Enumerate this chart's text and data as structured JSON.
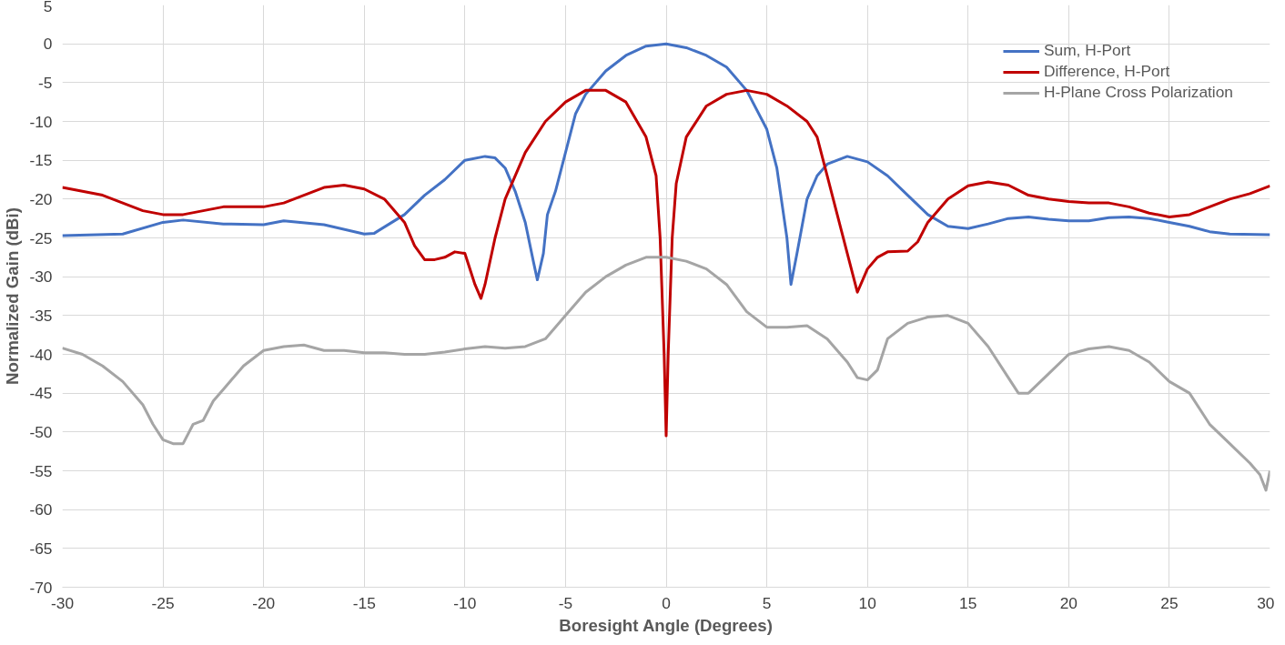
{
  "chart_data": {
    "type": "line",
    "xlabel": "Boresight Angle (Degrees)",
    "ylabel": "Normalized Gain (dBi)",
    "xlim": [
      -30,
      30
    ],
    "xticks": [
      -30,
      -25,
      -20,
      -15,
      -10,
      -5,
      0,
      5,
      10,
      15,
      20,
      25,
      30
    ],
    "ylim": [
      -70,
      5
    ],
    "yticks": [
      -70,
      -65,
      -60,
      -55,
      -50,
      -45,
      -40,
      -35,
      -30,
      -25,
      -20,
      -15,
      -10,
      -5,
      0,
      5
    ],
    "grid": true,
    "legend": "top right",
    "marker": "none",
    "line_style": "solid",
    "series": [
      {
        "name": "Sum, H-Port",
        "color": "#4472c4",
        "x": [
          -30,
          -27,
          -25,
          -24,
          -22,
          -20,
          -19,
          -17,
          -15,
          -14.5,
          -13,
          -12,
          -11,
          -10,
          -9,
          -8.5,
          -8,
          -7.5,
          -7,
          -6.6,
          -6.4,
          -6.1,
          -5.9,
          -5.5,
          -5,
          -4.5,
          -4,
          -3,
          -2,
          -1,
          0,
          1,
          2,
          3,
          4,
          5,
          5.5,
          6,
          6.2,
          6.5,
          7,
          7.5,
          8,
          9,
          10,
          11,
          12,
          13,
          14,
          15,
          16,
          17,
          18,
          19,
          20,
          21,
          22,
          23,
          24,
          25,
          26,
          27,
          28,
          30
        ],
        "values": [
          -24.7,
          -24.5,
          -23,
          -22.7,
          -23.2,
          -23.3,
          -22.8,
          -23.3,
          -24.5,
          -24.4,
          -22,
          -19.5,
          -17.5,
          -15,
          -14.5,
          -14.7,
          -16,
          -19,
          -23,
          -28,
          -30.4,
          -27,
          -22,
          -19,
          -14,
          -9,
          -6.5,
          -3.5,
          -1.5,
          -0.3,
          0,
          -0.5,
          -1.5,
          -3,
          -6,
          -11,
          -16,
          -25,
          -31,
          -27,
          -20,
          -17,
          -15.5,
          -14.5,
          -15.2,
          -17,
          -19.5,
          -22,
          -23.5,
          -23.8,
          -23.2,
          -22.5,
          -22.3,
          -22.6,
          -22.8,
          -22.8,
          -22.4,
          -22.3,
          -22.5,
          -23,
          -23.5,
          -24.2,
          -24.5,
          -24.6
        ]
      },
      {
        "name": "Difference, H-Port",
        "color": "#c00000",
        "x": [
          -30,
          -28,
          -26,
          -25,
          -24,
          -23,
          -22,
          -20,
          -19,
          -17,
          -16,
          -15,
          -14,
          -13,
          -12.5,
          -12,
          -11.5,
          -11,
          -10.5,
          -10,
          -9.5,
          -9.2,
          -9,
          -8.5,
          -8,
          -7,
          -6,
          -5,
          -4,
          -3,
          -2,
          -1,
          -0.5,
          -0.3,
          -0.1,
          0,
          0.1,
          0.3,
          0.5,
          1,
          2,
          3,
          4,
          5,
          6,
          7,
          7.5,
          8,
          8.5,
          9,
          9.5,
          10,
          10.5,
          11,
          12,
          12.5,
          13,
          14,
          15,
          16,
          17,
          18,
          19,
          20,
          21,
          22,
          23,
          24,
          25,
          26,
          27,
          28,
          29,
          30
        ],
        "values": [
          -18.5,
          -19.5,
          -21.5,
          -22,
          -22,
          -21.5,
          -21,
          -21,
          -20.5,
          -18.5,
          -18.2,
          -18.7,
          -20,
          -23,
          -26,
          -27.8,
          -27.8,
          -27.5,
          -26.8,
          -27,
          -31,
          -32.8,
          -31,
          -25,
          -20,
          -14,
          -10,
          -7.5,
          -6,
          -6,
          -7.5,
          -12,
          -17,
          -25,
          -40,
          -50.5,
          -40,
          -25,
          -18,
          -12,
          -8,
          -6.5,
          -6,
          -6.5,
          -8,
          -10,
          -12,
          -17,
          -22,
          -27,
          -32,
          -29,
          -27.5,
          -26.8,
          -26.7,
          -25.5,
          -23,
          -20,
          -18.3,
          -17.8,
          -18.2,
          -19.5,
          -20,
          -20.3,
          -20.5,
          -20.5,
          -21,
          -21.8,
          -22.3,
          -22,
          -21,
          -20,
          -19.3,
          -18.3
        ]
      },
      {
        "name": "H-Plane Cross Polarization",
        "color": "#a5a5a5",
        "x": [
          -30,
          -29,
          -28,
          -27,
          -26,
          -25.5,
          -25,
          -24.5,
          -24,
          -23.5,
          -23,
          -22.5,
          -22,
          -21,
          -20,
          -19,
          -18,
          -17,
          -16,
          -15,
          -14,
          -13,
          -12,
          -11,
          -10,
          -9,
          -8,
          -7,
          -6,
          -5,
          -4,
          -3,
          -2,
          -1,
          0,
          1,
          2,
          3,
          4,
          5,
          6,
          7,
          8,
          9,
          9.5,
          10,
          10.5,
          11,
          12,
          13,
          14,
          15,
          16,
          17,
          17.5,
          18,
          19,
          20,
          21,
          22,
          23,
          24,
          25,
          26,
          27,
          28,
          29,
          29.5,
          29.8,
          30
        ],
        "values": [
          -39.2,
          -40,
          -41.5,
          -43.5,
          -46.5,
          -49,
          -51,
          -51.5,
          -51.5,
          -49,
          -48.5,
          -46,
          -44.5,
          -41.5,
          -39.5,
          -39,
          -38.8,
          -39.5,
          -39.5,
          -39.8,
          -39.8,
          -40,
          -40,
          -39.7,
          -39.3,
          -39,
          -39.2,
          -39,
          -38,
          -35,
          -32,
          -30,
          -28.5,
          -27.5,
          -27.5,
          -28,
          -29,
          -31,
          -34.5,
          -36.5,
          -36.5,
          -36.3,
          -38,
          -41,
          -43,
          -43.3,
          -42,
          -38,
          -36,
          -35.2,
          -35,
          -36,
          -39,
          -43,
          -45,
          -45,
          -42.5,
          -40,
          -39.3,
          -39,
          -39.5,
          -41,
          -43.5,
          -45,
          -49,
          -51.5,
          -54,
          -55.5,
          -57.5,
          -55
        ]
      }
    ]
  }
}
